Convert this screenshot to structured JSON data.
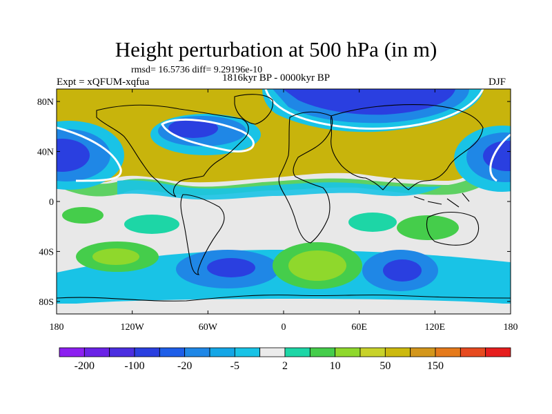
{
  "title": "Height perturbation at 500 hPa (in m)",
  "stats": "rmsd= 16.5736 diff= 9.29196e-10",
  "experiment": "Expt = xQFUM-xqfua",
  "period": "1816kyr BP - 0000kyr BP",
  "season": "DJF",
  "map": {
    "projection": "cylindrical-equidistant",
    "lon_range": [
      -180,
      180
    ],
    "lat_range": [
      -90,
      90
    ],
    "lat_ticks": [
      {
        "value": 80,
        "label": "80N"
      },
      {
        "value": 40,
        "label": "40N"
      },
      {
        "value": 0,
        "label": "0"
      },
      {
        "value": -40,
        "label": "40S"
      },
      {
        "value": -80,
        "label": "80S"
      }
    ],
    "lon_ticks": [
      {
        "value": -180,
        "label": "180"
      },
      {
        "value": -120,
        "label": "120W"
      },
      {
        "value": -60,
        "label": "60W"
      },
      {
        "value": 0,
        "label": "0"
      },
      {
        "value": 60,
        "label": "60E"
      },
      {
        "value": 120,
        "label": "120E"
      },
      {
        "value": 180,
        "label": "180"
      }
    ],
    "field_features": [
      {
        "name": "north-pacific-low",
        "lon": -165,
        "lat": 42,
        "value": -100
      },
      {
        "name": "north-pacific-low-east",
        "lon": 165,
        "lat": 40,
        "value": -100
      },
      {
        "name": "north-america-low",
        "lon": -90,
        "lat": 62,
        "value": -100
      },
      {
        "name": "arctic-eurasia-low",
        "lon": 30,
        "lat": 78,
        "value": -100
      },
      {
        "name": "atlantic-europe-high",
        "lon": 10,
        "lat": 55,
        "value": 50
      },
      {
        "name": "north-asia-high",
        "lon": 100,
        "lat": 50,
        "value": 50
      },
      {
        "name": "south-atlantic-high",
        "lon": 28,
        "lat": -50,
        "value": 10
      },
      {
        "name": "south-pacific-low",
        "lon": -70,
        "lat": -52,
        "value": -20
      },
      {
        "name": "south-indian-low",
        "lon": 80,
        "lat": -52,
        "value": -20
      }
    ],
    "colors": {
      "ocean_bg": "#e8e8e8",
      "coastline": "#000000",
      "zero_contour": "#ffffff"
    }
  },
  "colorbar": {
    "levels": [
      -200,
      -100,
      -20,
      -5,
      2,
      10,
      50,
      150
    ],
    "labels": [
      "-200",
      "-100",
      "-20",
      "-5",
      "2",
      "10",
      "50",
      "150"
    ],
    "colors": [
      "#8c1ff0",
      "#6a22e6",
      "#4b2ee0",
      "#2a3fe0",
      "#1e5ee8",
      "#1f87e6",
      "#14a6e6",
      "#19c3e6",
      "#ebebeb",
      "#1dd6a6",
      "#45cd4b",
      "#8fd82c",
      "#c8d22a",
      "#ccb90e",
      "#d3961b",
      "#e57a1b",
      "#e64a1f",
      "#e61e1e"
    ]
  }
}
